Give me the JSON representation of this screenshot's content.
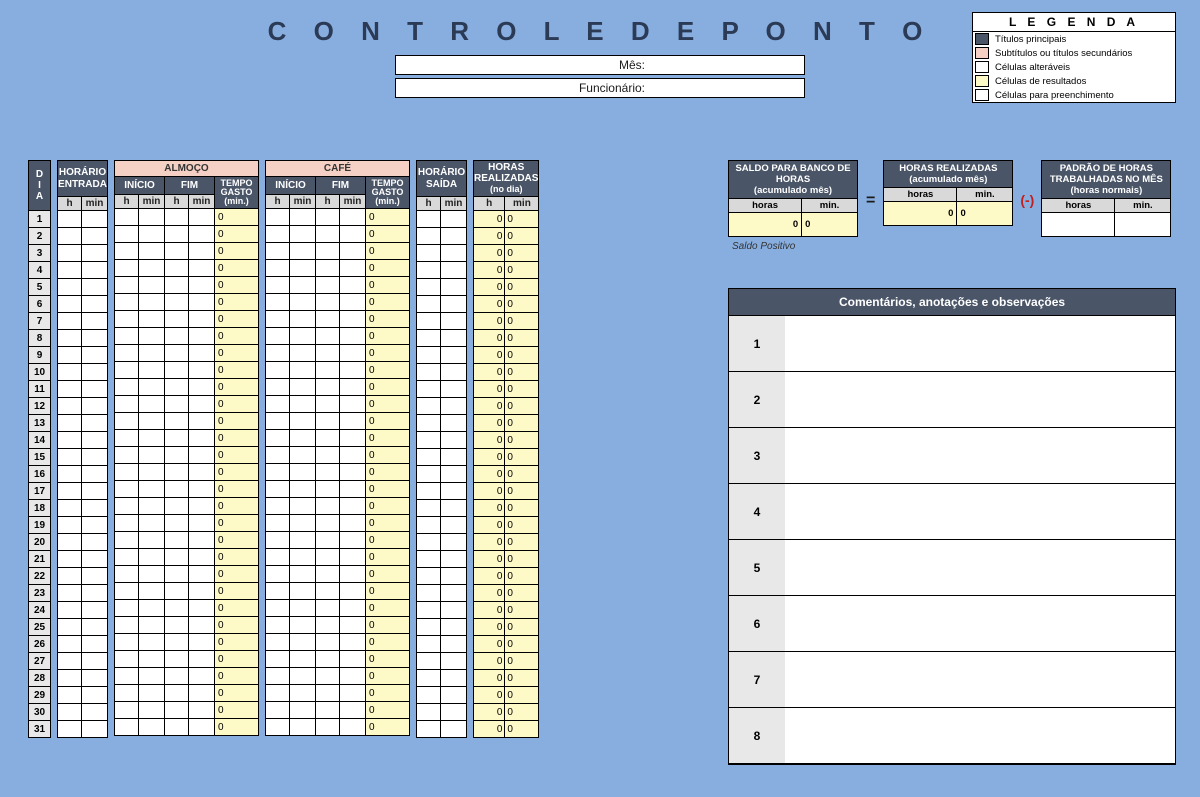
{
  "colors": {
    "page_bg": "#88aee0",
    "header_dark": "#4a5568",
    "header_pink": "#f5d0c4",
    "header_gray": "#d9d9d9",
    "result_yellow": "#fdfac8",
    "fill_white": "#ffffff",
    "alt_gray": "#e8e8e8",
    "text_dark": "#2b3a55",
    "minus_red": "#c02020"
  },
  "title": "C O N T R O L E   D E   P O N T O",
  "fields": {
    "mes_label": "Mês:",
    "mes_value": "",
    "func_label": "Funcionário:",
    "func_value": ""
  },
  "legend": {
    "title": "L E G E N D A",
    "items": [
      {
        "color": "#4a5568",
        "label": "Títulos principais"
      },
      {
        "color": "#f5d0c4",
        "label": "Subtítulos ou títulos secundários"
      },
      {
        "color": "#ffffff",
        "label": "Células alteráveis"
      },
      {
        "color": "#fdfac8",
        "label": "Células de resultados"
      },
      {
        "color": "#ffffff",
        "label": "Células para preenchimento"
      }
    ]
  },
  "table": {
    "dia_label": "D\nI\nA",
    "days": 31,
    "h_label": "h",
    "min_label": "min",
    "entrada_title": "HORÁRIO ENTRADA",
    "almoco_title": "ALMOÇO",
    "almoco_inicio": "INÍCIO",
    "almoco_fim": "FIM",
    "tempo_gasto": "TEMPO GASTO (min.)",
    "cafe_title": "CAFÉ",
    "cafe_inicio": "INÍCIO",
    "cafe_fim": "FIM",
    "saida_title": "HORÁRIO SAÍDA",
    "realizadas_title": "HORAS REALIZADAS",
    "realizadas_sub": "(no dia)",
    "zero": "0"
  },
  "summary": {
    "saldo_title": "SALDO PARA BANCO DE HORAS",
    "saldo_sub": "(acumulado mês)",
    "realizadas_title": "HORAS REALIZADAS",
    "realizadas_sub": "(acumulado mês)",
    "padrao_title": "PADRÃO DE HORAS TRABALHADAS NO MÊS",
    "padrao_sub": "(horas normais)",
    "horas_label": "horas",
    "min_label": "min.",
    "equals": "=",
    "minus": "(-)",
    "saldo_h": "0",
    "saldo_m": "0",
    "real_h": "0",
    "real_m": "0",
    "pad_h": "",
    "pad_m": "",
    "saldo_positivo": "Saldo Positivo"
  },
  "comments": {
    "title": "Comentários, anotações e observações",
    "rows": [
      1,
      2,
      3,
      4,
      5,
      6,
      7,
      8
    ]
  }
}
